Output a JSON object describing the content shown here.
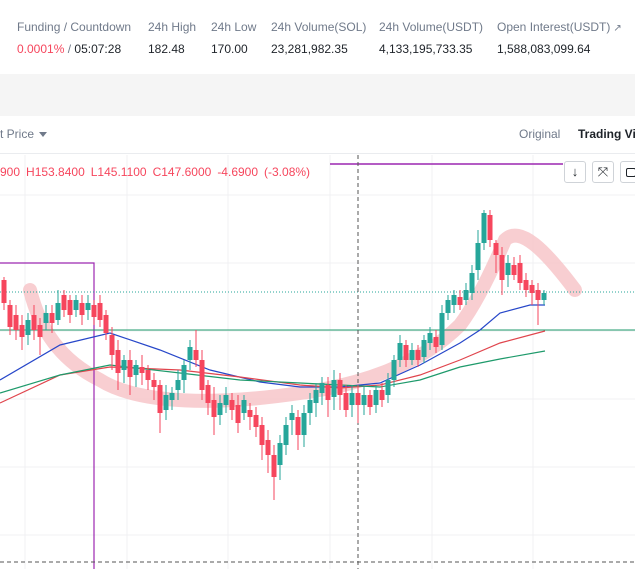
{
  "stats": {
    "funding": {
      "label": "Funding / Countdown",
      "rate": "0.0001%",
      "separator": "/",
      "countdown": "05:07:28"
    },
    "high": {
      "label": "24h High",
      "value": "182.48"
    },
    "low": {
      "label": "24h Low",
      "value": "170.00"
    },
    "volume_sol": {
      "label": "24h Volume(SOL)",
      "value": "23,281,982.35"
    },
    "volume_usdt": {
      "label": "24h Volume(USDT)",
      "value": "4,133,195,733.35"
    },
    "open_interest": {
      "label": "Open Interest(USDT)",
      "value": "1,588,083,099.64",
      "icon": "external-link-icon"
    }
  },
  "toolbar": {
    "price_select": "t Price",
    "tabs": [
      {
        "label": "Original"
      },
      {
        "label": "Trading Vie"
      }
    ]
  },
  "ohlc": {
    "open": "900",
    "high": "H153.8400",
    "low": "L145.1100",
    "close": "C147.6000",
    "change": "-4.6900",
    "change_pct": "(-3.08%)"
  },
  "chart_tools": {
    "icons": [
      "arrow-down-icon",
      "collapse-icon",
      "more-icon"
    ],
    "down_glyph": "↓",
    "expand_glyph": "⤧"
  },
  "colors": {
    "up": "#26a69a",
    "down": "#f6465d",
    "ma_blue": "#2747c9",
    "ma_red": "#e0454d",
    "ma_green": "#1e9a6b",
    "drawing_purple": "#9c27b0",
    "highlight_pink": "#f7c6c9"
  }
}
